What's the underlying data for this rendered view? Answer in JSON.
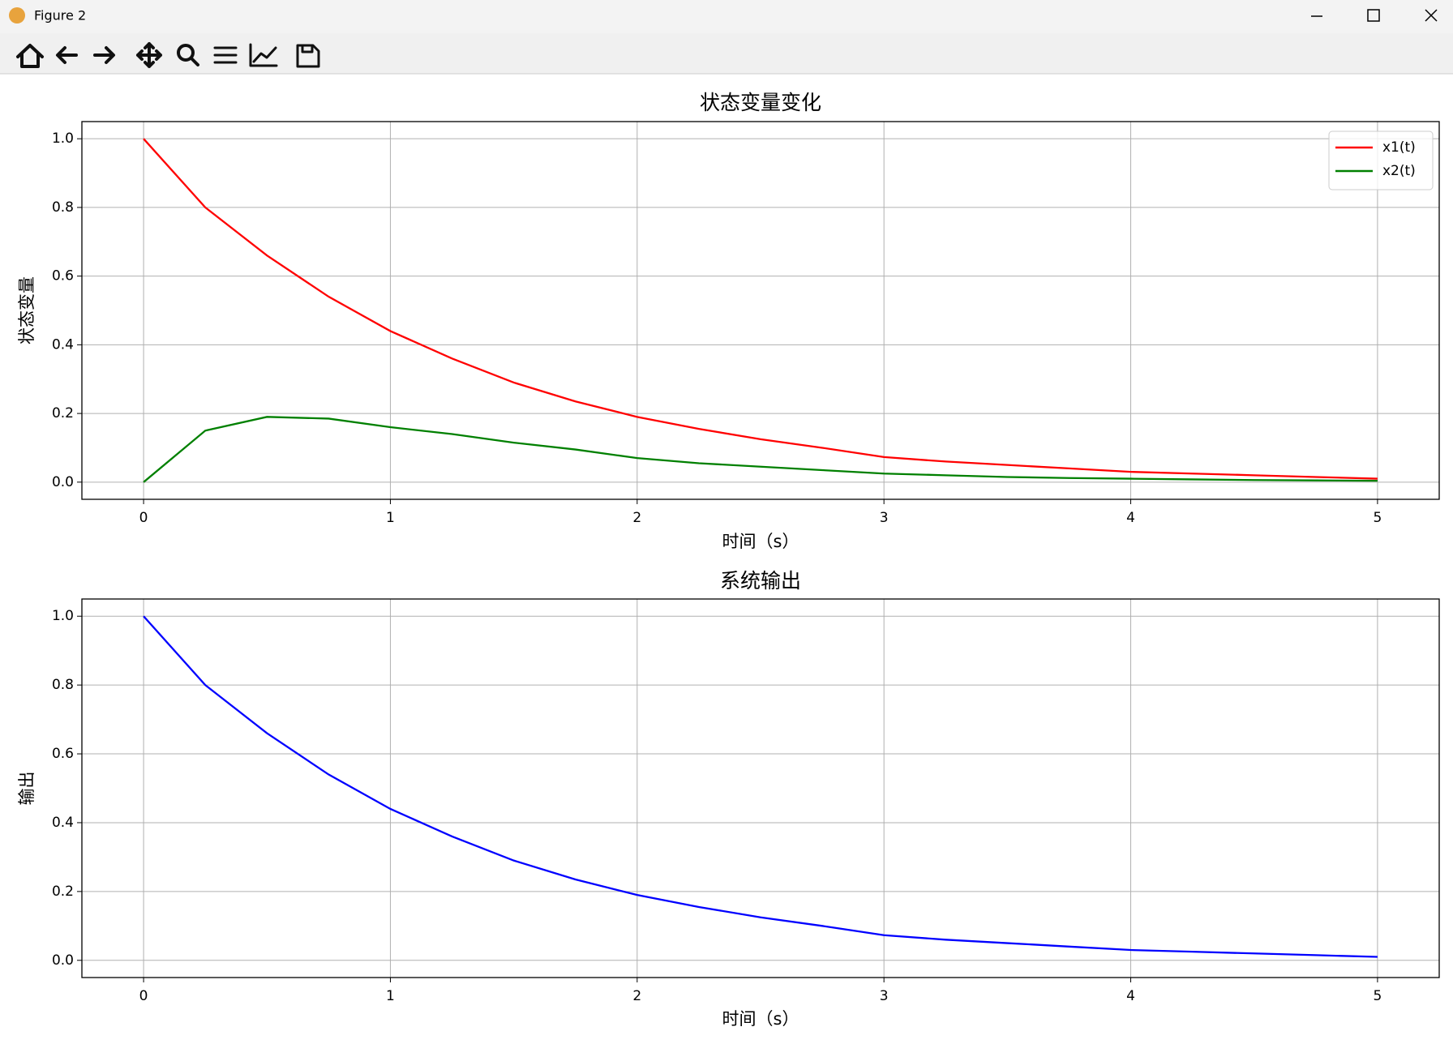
{
  "window": {
    "title": "Figure 2"
  },
  "chart_data": [
    {
      "type": "line",
      "title": "状态变量变化",
      "xlabel": "时间（s）",
      "ylabel": "状态变量",
      "x": [
        0,
        0.25,
        0.5,
        0.75,
        1,
        1.25,
        1.5,
        1.75,
        2,
        2.25,
        2.5,
        2.75,
        3,
        3.25,
        3.5,
        3.75,
        4,
        4.25,
        4.5,
        4.75,
        5
      ],
      "series": [
        {
          "name": "x1(t)",
          "color": "#ff0000",
          "values": [
            1.0,
            0.8,
            0.66,
            0.54,
            0.44,
            0.36,
            0.29,
            0.235,
            0.19,
            0.155,
            0.125,
            0.1,
            0.073,
            0.06,
            0.05,
            0.04,
            0.03,
            0.025,
            0.02,
            0.015,
            0.01
          ]
        },
        {
          "name": "x2(t)",
          "color": "#008000",
          "values": [
            0,
            0.15,
            0.19,
            0.185,
            0.16,
            0.14,
            0.115,
            0.095,
            0.07,
            0.055,
            0.045,
            0.035,
            0.025,
            0.02,
            0.015,
            0.012,
            0.01,
            0.008,
            0.006,
            0.005,
            0.004
          ]
        }
      ],
      "xlim": [
        -0.25,
        5.25
      ],
      "xticks": [
        0,
        1,
        2,
        3,
        4,
        5
      ],
      "ylim": [
        -0.05,
        1.05
      ],
      "yticks": [
        {
          "value": 0,
          "label": "0.0"
        },
        0.2,
        0.4,
        0.6,
        0.8,
        {
          "value": 1,
          "label": "1.0"
        }
      ],
      "grid": true,
      "legend": "upper right"
    },
    {
      "type": "line",
      "title": "系统输出",
      "xlabel": "时间（s）",
      "ylabel": "输出",
      "x": [
        0,
        0.25,
        0.5,
        0.75,
        1,
        1.25,
        1.5,
        1.75,
        2,
        2.25,
        2.5,
        2.75,
        3,
        3.25,
        3.5,
        3.75,
        4,
        4.25,
        4.5,
        4.75,
        5
      ],
      "series": [
        {
          "color": "#0000ff",
          "values": [
            1.0,
            0.8,
            0.66,
            0.54,
            0.44,
            0.36,
            0.29,
            0.235,
            0.19,
            0.155,
            0.125,
            0.1,
            0.073,
            0.06,
            0.05,
            0.04,
            0.03,
            0.025,
            0.02,
            0.015,
            0.01
          ]
        }
      ],
      "xlim": [
        -0.25,
        5.25
      ],
      "xticks": [
        0,
        1,
        2,
        3,
        4,
        5
      ],
      "ylim": [
        -0.05,
        1.05
      ],
      "yticks": [
        {
          "value": 0,
          "label": "0.0"
        },
        0.2,
        0.4,
        0.6,
        0.8,
        {
          "value": 1,
          "label": "1.0"
        }
      ],
      "grid": true
    }
  ]
}
